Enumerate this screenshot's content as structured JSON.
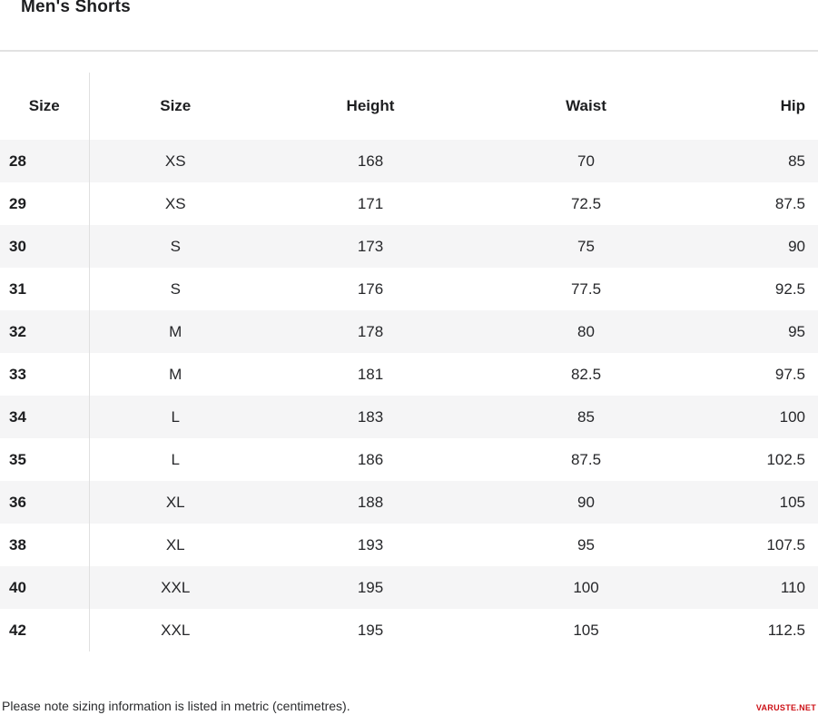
{
  "page": {
    "title": "Men's Shorts",
    "note": "Please note sizing information is listed in metric (centimetres).",
    "watermark": "VARUSTE.NET"
  },
  "colors": {
    "brand_red": "#cc1016",
    "row_stripe": "#f5f5f6",
    "divider": "#e0e0e0"
  },
  "table": {
    "headers": [
      "Size",
      "Size",
      "Height",
      "Waist",
      "Hip"
    ],
    "rows": [
      [
        "28",
        "XS",
        "168",
        "70",
        "85"
      ],
      [
        "29",
        "XS",
        "171",
        "72.5",
        "87.5"
      ],
      [
        "30",
        "S",
        "173",
        "75",
        "90"
      ],
      [
        "31",
        "S",
        "176",
        "77.5",
        "92.5"
      ],
      [
        "32",
        "M",
        "178",
        "80",
        "95"
      ],
      [
        "33",
        "M",
        "181",
        "82.5",
        "97.5"
      ],
      [
        "34",
        "L",
        "183",
        "85",
        "100"
      ],
      [
        "35",
        "L",
        "186",
        "87.5",
        "102.5"
      ],
      [
        "36",
        "XL",
        "188",
        "90",
        "105"
      ],
      [
        "38",
        "XL",
        "193",
        "95",
        "107.5"
      ],
      [
        "40",
        "XXL",
        "195",
        "100",
        "110"
      ],
      [
        "42",
        "XXL",
        "195",
        "105",
        "112.5"
      ]
    ]
  }
}
